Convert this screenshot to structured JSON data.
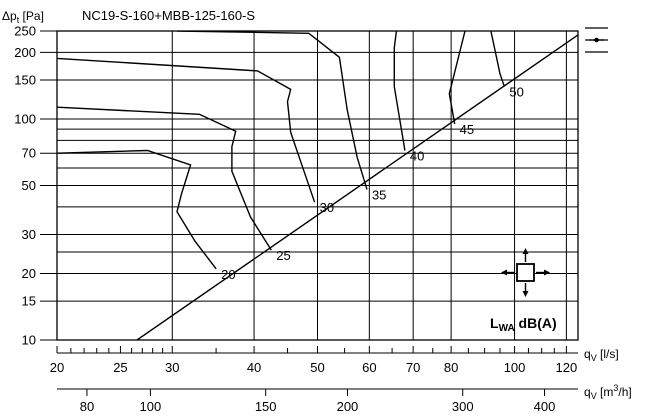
{
  "chart_data": {
    "type": "line",
    "title": "NC19-S-160+MBB-125-160-S",
    "ylabel": "Δpt [Pa]",
    "xlabel_ls": "qV [l/s]",
    "xlabel_m3h": "qV [m3/h]",
    "y_scale": "log",
    "x_scale": "log",
    "xlim_ls": [
      20,
      125
    ],
    "ylim": [
      10,
      250
    ],
    "y_ticks": [
      10,
      15,
      20,
      30,
      50,
      70,
      100,
      150,
      200,
      250
    ],
    "x_ticks_ls": [
      20,
      25,
      30,
      40,
      50,
      60,
      70,
      80,
      100,
      120
    ],
    "x_minor_ls": [
      21,
      22,
      23,
      24,
      26,
      27,
      28,
      29,
      35,
      45,
      55,
      65,
      75,
      85,
      90,
      95,
      105,
      110,
      115
    ],
    "x_ticks_m3h": [
      80,
      100,
      150,
      200,
      300,
      400
    ],
    "x_grid_ls": [
      30,
      40,
      50,
      60,
      70,
      80,
      100,
      120
    ],
    "y_grid": [
      15,
      20,
      25,
      30,
      40,
      50,
      60,
      70,
      80,
      90,
      100,
      150,
      200
    ],
    "grid": true,
    "level_label": "LWA dB(A)",
    "system_line": {
      "from": [
        26.5,
        10
      ],
      "to": [
        125,
        240
      ]
    },
    "series": [
      {
        "name": "20",
        "points": [
          [
            20,
            70
          ],
          [
            27.5,
            72
          ],
          [
            32,
            62
          ],
          [
            31,
            46
          ],
          [
            30.5,
            38
          ],
          [
            32.5,
            28
          ],
          [
            35,
            21
          ]
        ]
      },
      {
        "name": "25",
        "points": [
          [
            20,
            113
          ],
          [
            33,
            105
          ],
          [
            37.5,
            88
          ],
          [
            37,
            75
          ],
          [
            37,
            58
          ],
          [
            39.5,
            36
          ],
          [
            42.5,
            25.5
          ]
        ]
      },
      {
        "name": "30",
        "points": [
          [
            20,
            188
          ],
          [
            40.5,
            165
          ],
          [
            45.5,
            136
          ],
          [
            45,
            120
          ],
          [
            45.5,
            87
          ],
          [
            49.5,
            42
          ]
        ]
      },
      {
        "name": "35",
        "points": [
          [
            30.5,
            250
          ],
          [
            48.5,
            244
          ],
          [
            54,
            190
          ],
          [
            55.5,
            110
          ],
          [
            57.5,
            67
          ],
          [
            59.5,
            48
          ]
        ]
      },
      {
        "name": "40",
        "points": [
          [
            66,
            250
          ],
          [
            65.5,
            210
          ],
          [
            65.5,
            140
          ],
          [
            68,
            72
          ]
        ]
      },
      {
        "name": "45",
        "points": [
          [
            84,
            250
          ],
          [
            79.5,
            130
          ],
          [
            81,
            95
          ]
        ]
      },
      {
        "name": "50",
        "points": [
          [
            92,
            250
          ],
          [
            95,
            160
          ],
          [
            96.5,
            140
          ]
        ]
      }
    ]
  },
  "ui": {
    "collapse_icon": "bar-dot-icon"
  }
}
